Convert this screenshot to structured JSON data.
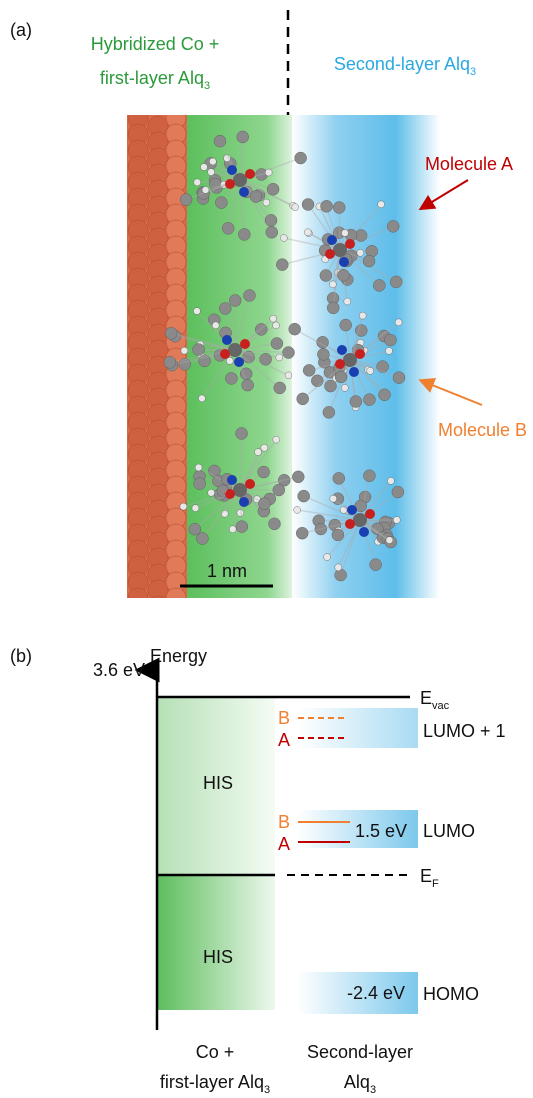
{
  "panel_a": {
    "label": "(a)",
    "left_region": {
      "line1": "Hybridized Co +",
      "line2": "first-layer Alq",
      "sub": "3"
    },
    "right_region": {
      "text": "Second-layer Alq",
      "sub": "3"
    },
    "molecule_a": "Molecule A",
    "molecule_b": "Molecule B",
    "scale_bar": "1 nm"
  },
  "panel_b": {
    "label": "(b)",
    "axis_label": "Energy",
    "vacuum_energy": "3.6 eV",
    "evac": {
      "text": "E",
      "sub": "vac"
    },
    "ef": {
      "text": "E",
      "sub": "F"
    },
    "his_upper": "HIS",
    "his_lower": "HIS",
    "lumo1_labels": [
      "B",
      "A"
    ],
    "lumo1": "LUMO + 1",
    "lumo_labels": [
      "B",
      "A"
    ],
    "lumo_gap": "1.5 eV",
    "lumo": "LUMO",
    "homo_gap": "-2.4 eV",
    "homo": "HOMO",
    "x_left": {
      "line1": "Co +",
      "line2": "first-layer Alq",
      "sub": "3"
    },
    "x_right": {
      "line1": "Second-layer",
      "line2": "Alq",
      "sub": "3"
    }
  }
}
